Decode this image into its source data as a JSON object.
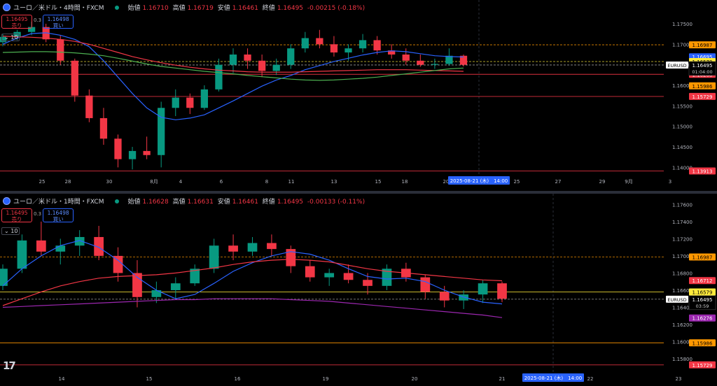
{
  "top": {
    "symbol": "ユーロ／米ドル・4時間・FXCM",
    "ohlc": {
      "open_label": "始値",
      "open": "1.16710",
      "high_label": "高値",
      "high": "1.16719",
      "low_label": "安値",
      "low": "1.16461",
      "close_label": "終値",
      "close": "1.16495",
      "change": "-0.00215 (-0.18%)"
    },
    "sell_price": "1.16495",
    "sell_label": "売り",
    "spread": "0.3",
    "buy_price": "1.16498",
    "buy_label": "買い",
    "collapse_label": "10",
    "symbol_tag": "EURUSD",
    "current_price": "1.16495",
    "countdown": "01:04:00",
    "crosshair_label": "2025-08-21 (木)　14:00"
  },
  "bottom": {
    "symbol": "ユーロ／米ドル・1時間・FXCM",
    "ohlc": {
      "open_label": "始値",
      "open": "1.16628",
      "high_label": "高値",
      "high": "1.16631",
      "low_label": "安値",
      "low": "1.16461",
      "close_label": "終値",
      "close": "1.16495",
      "change": "-0.00133 (-0.11%)"
    },
    "sell_price": "1.16495",
    "sell_label": "売り",
    "spread": "0.3",
    "buy_price": "1.16498",
    "buy_label": "買い",
    "collapse_label": "10",
    "symbol_tag": "EURUSD",
    "current_price": "1.16495",
    "countdown": "03:59",
    "crosshair_label": "2025-08-21 (木)　14:00",
    "brand": "17"
  },
  "colors": {
    "up": "#089981",
    "down": "#f23645",
    "ma_fast": "#2962ff",
    "ma_slow": "#f23645",
    "ma_green": "#4caf50",
    "ma_purple": "#9c27b0",
    "level_orange": "#ff9800",
    "level_yellow": "#ffeb3b"
  },
  "chart_data": [
    {
      "type": "candlestick",
      "title": "ユーロ／米ドル・4時間・FXCM",
      "x_ticks": [
        "25",
        "28",
        "30",
        "8月",
        "4",
        "6",
        "8",
        "11",
        "13",
        "15",
        "18",
        "20",
        "25",
        "27",
        "29",
        "9月",
        "3"
      ],
      "y_ticks": [
        "1.17500",
        "1.17000",
        "1.16500",
        "1.16000",
        "1.15500",
        "1.15000",
        "1.14500",
        "1.14000"
      ],
      "ylim": [
        1.1387,
        1.1784
      ],
      "price_labels": [
        {
          "value": 1.16987,
          "text": "1.16987",
          "color": "#ff9800"
        },
        {
          "value": 1.16695,
          "text": "1.16695",
          "color": "#2962ff"
        },
        {
          "value": 1.16579,
          "text": "1.16579",
          "color": "#ffeb3b"
        },
        {
          "value": 1.16403,
          "text": "1.16403",
          "color": "#4caf50"
        },
        {
          "value": 1.16268,
          "text": "1.16268",
          "color": "#f23645"
        },
        {
          "value": 1.15986,
          "text": "1.15986",
          "color": "#ff9800"
        },
        {
          "value": 1.15729,
          "text": "1.15729",
          "color": "#f23645"
        },
        {
          "value": 1.13913,
          "text": "1.13913",
          "color": "#f23645"
        }
      ],
      "hlines": [
        {
          "value": 1.16987,
          "color": "#ff9800",
          "dash": true
        },
        {
          "value": 1.16579,
          "color": "#ffeb3b",
          "dash": true
        },
        {
          "value": 1.16495,
          "color": "#aaaaaa",
          "dash": true
        },
        {
          "value": 1.16268,
          "color": "#f23645",
          "dash": false
        },
        {
          "value": 1.15729,
          "color": "#f23645",
          "dash": false
        },
        {
          "value": 1.13913,
          "color": "#f23645",
          "dash": false
        }
      ],
      "series": [
        {
          "name": "",
          "color": "#2962ff",
          "values": [
            1.17,
            1.1715,
            1.1726,
            1.1728,
            1.1722,
            1.1712,
            1.1694,
            1.166,
            1.162,
            1.158,
            1.1545,
            1.1522,
            1.1516,
            1.152,
            1.1528,
            1.1545,
            1.1562,
            1.158,
            1.1598,
            1.1613,
            1.1624,
            1.1638,
            1.1648,
            1.1658,
            1.1666,
            1.1674,
            1.168,
            1.1684,
            1.1682,
            1.1677,
            1.1672,
            1.167,
            1.1669
          ]
        },
        {
          "name": "",
          "color": "#f23645",
          "values": [
            1.172,
            1.1718,
            1.1717,
            1.1715,
            1.1712,
            1.1707,
            1.17,
            1.169,
            1.168,
            1.167,
            1.1662,
            1.1655,
            1.1649,
            1.1644,
            1.164,
            1.1637,
            1.1635,
            1.1633,
            1.1632,
            1.1632,
            1.1632,
            1.1633,
            1.1634,
            1.1635,
            1.1636,
            1.1637,
            1.1638,
            1.1638,
            1.1638,
            1.1637,
            1.1636,
            1.1635,
            1.1634
          ]
        },
        {
          "name": "",
          "color": "#4caf50",
          "values": [
            1.168,
            1.1681,
            1.1682,
            1.1682,
            1.1681,
            1.1679,
            1.1676,
            1.1672,
            1.1666,
            1.1659,
            1.1652,
            1.1646,
            1.1642,
            1.1638,
            1.1634,
            1.1631,
            1.1628,
            1.1624,
            1.1621,
            1.1618,
            1.1615,
            1.1613,
            1.1612,
            1.1613,
            1.1615,
            1.1617,
            1.162,
            1.1624,
            1.1628,
            1.1632,
            1.1636,
            1.164,
            1.1642
          ]
        }
      ],
      "candles_ohlc": [
        [
          1.1705,
          1.1725,
          1.1695,
          1.1718
        ],
        [
          1.1718,
          1.1735,
          1.171,
          1.173
        ],
        [
          1.173,
          1.1755,
          1.1722,
          1.1742
        ],
        [
          1.1742,
          1.175,
          1.1705,
          1.1712
        ],
        [
          1.1712,
          1.1722,
          1.165,
          1.166
        ],
        [
          1.166,
          1.1665,
          1.156,
          1.1575
        ],
        [
          1.1575,
          1.159,
          1.151,
          1.152
        ],
        [
          1.152,
          1.1545,
          1.1455,
          1.147
        ],
        [
          1.147,
          1.148,
          1.14,
          1.142
        ],
        [
          1.142,
          1.145,
          1.1395,
          1.144
        ],
        [
          1.144,
          1.1475,
          1.142,
          1.143
        ],
        [
          1.143,
          1.156,
          1.14,
          1.1545
        ],
        [
          1.1545,
          1.159,
          1.1525,
          1.157
        ],
        [
          1.157,
          1.158,
          1.153,
          1.1545
        ],
        [
          1.1545,
          1.16,
          1.154,
          1.159
        ],
        [
          1.159,
          1.1665,
          1.1585,
          1.165
        ],
        [
          1.165,
          1.169,
          1.163,
          1.1675
        ],
        [
          1.1675,
          1.169,
          1.164,
          1.166
        ],
        [
          1.166,
          1.1675,
          1.162,
          1.1635
        ],
        [
          1.1635,
          1.1665,
          1.1625,
          1.165
        ],
        [
          1.165,
          1.17,
          1.164,
          1.169
        ],
        [
          1.169,
          1.173,
          1.168,
          1.1715
        ],
        [
          1.1715,
          1.1735,
          1.169,
          1.17
        ],
        [
          1.17,
          1.172,
          1.167,
          1.168
        ],
        [
          1.168,
          1.17,
          1.166,
          1.169
        ],
        [
          1.169,
          1.1725,
          1.168,
          1.171
        ],
        [
          1.171,
          1.172,
          1.1675,
          1.1685
        ],
        [
          1.1685,
          1.17,
          1.1665,
          1.1675
        ],
        [
          1.1675,
          1.169,
          1.165,
          1.166
        ],
        [
          1.166,
          1.1675,
          1.1645,
          1.165
        ],
        [
          1.165,
          1.1665,
          1.164,
          1.1652
        ],
        [
          1.1652,
          1.169,
          1.1648,
          1.1672
        ],
        [
          1.1672,
          1.1675,
          1.1646,
          1.165
        ]
      ]
    },
    {
      "type": "candlestick",
      "title": "ユーロ／米ドル・1時間・FXCM",
      "x_ticks": [
        "14",
        "15",
        "16",
        "19",
        "20",
        "21",
        "22",
        "23"
      ],
      "y_ticks": [
        "1.17600",
        "1.17400",
        "1.17200",
        "1.17000",
        "1.16800",
        "1.16600",
        "1.16400",
        "1.16200",
        "1.16000",
        "1.15800"
      ],
      "ylim": [
        1.1567,
        1.1766
      ],
      "price_labels": [
        {
          "value": 1.16987,
          "text": "1.16987",
          "color": "#ff9800"
        },
        {
          "value": 1.16712,
          "text": "1.16712",
          "color": "#f23645"
        },
        {
          "value": 1.16579,
          "text": "1.16579",
          "color": "#ffeb3b"
        },
        {
          "value": 1.16486,
          "text": "1.16486",
          "color": "#4caf50"
        },
        {
          "value": 1.16436,
          "text": "1.16436",
          "color": "#2962ff"
        },
        {
          "value": 1.16276,
          "text": "1.16276",
          "color": "#9c27b0"
        },
        {
          "value": 1.15986,
          "text": "1.15986",
          "color": "#ff9800"
        },
        {
          "value": 1.15729,
          "text": "1.15729",
          "color": "#f23645"
        }
      ],
      "hlines": [
        {
          "value": 1.16987,
          "color": "#ff9800",
          "dash": true
        },
        {
          "value": 1.16579,
          "color": "#ffeb3b",
          "dash": false
        },
        {
          "value": 1.16495,
          "color": "#aaaaaa",
          "dash": true
        },
        {
          "value": 1.15986,
          "color": "#ff9800",
          "dash": false
        },
        {
          "value": 1.15729,
          "color": "#f23645",
          "dash": false
        }
      ],
      "series": [
        {
          "name": "",
          "color": "#2962ff",
          "values": [
            1.1665,
            1.1685,
            1.17,
            1.1712,
            1.1718,
            1.171,
            1.1695,
            1.1675,
            1.166,
            1.165,
            1.1655,
            1.1668,
            1.1682,
            1.1692,
            1.17,
            1.1705,
            1.1702,
            1.1695,
            1.1685,
            1.1676,
            1.1673,
            1.1674,
            1.167,
            1.166,
            1.1652,
            1.1646,
            1.1644
          ]
        },
        {
          "name": "",
          "color": "#f23645",
          "values": [
            1.1642,
            1.165,
            1.1658,
            1.1665,
            1.167,
            1.1674,
            1.1676,
            1.1677,
            1.1678,
            1.168,
            1.1683,
            1.1686,
            1.169,
            1.1693,
            1.1695,
            1.1696,
            1.1695,
            1.1693,
            1.1689,
            1.1685,
            1.1682,
            1.168,
            1.1678,
            1.1676,
            1.1674,
            1.1672,
            1.1671
          ]
        },
        {
          "name": "",
          "color": "#9c27b0",
          "values": [
            1.164,
            1.1641,
            1.1642,
            1.1643,
            1.1644,
            1.1645,
            1.1646,
            1.1647,
            1.1648,
            1.1649,
            1.1649,
            1.165,
            1.165,
            1.165,
            1.165,
            1.1649,
            1.1648,
            1.1647,
            1.1645,
            1.1643,
            1.1641,
            1.1639,
            1.1637,
            1.1635,
            1.1633,
            1.1631,
            1.1628
          ]
        }
      ],
      "candles_ohlc": [
        [
          1.1665,
          1.169,
          1.166,
          1.1685
        ],
        [
          1.1685,
          1.1725,
          1.168,
          1.1718
        ],
        [
          1.1718,
          1.174,
          1.17,
          1.1705
        ],
        [
          1.1705,
          1.172,
          1.169,
          1.1712
        ],
        [
          1.1712,
          1.173,
          1.17,
          1.1722
        ],
        [
          1.1722,
          1.1735,
          1.1695,
          1.17
        ],
        [
          1.17,
          1.171,
          1.167,
          1.168
        ],
        [
          1.168,
          1.1695,
          1.164,
          1.1652
        ],
        [
          1.1652,
          1.167,
          1.1645,
          1.166
        ],
        [
          1.166,
          1.1675,
          1.165,
          1.1668
        ],
        [
          1.1668,
          1.169,
          1.1665,
          1.1685
        ],
        [
          1.1685,
          1.172,
          1.168,
          1.1712
        ],
        [
          1.1712,
          1.1725,
          1.1695,
          1.1705
        ],
        [
          1.1705,
          1.1722,
          1.17,
          1.1715
        ],
        [
          1.1715,
          1.1725,
          1.17,
          1.1708
        ],
        [
          1.1708,
          1.1712,
          1.168,
          1.1688
        ],
        [
          1.1688,
          1.1695,
          1.167,
          1.1675
        ],
        [
          1.1675,
          1.1685,
          1.1665,
          1.168
        ],
        [
          1.168,
          1.169,
          1.1668,
          1.1672
        ],
        [
          1.1672,
          1.168,
          1.1655,
          1.1665
        ],
        [
          1.1665,
          1.169,
          1.166,
          1.1685
        ],
        [
          1.1685,
          1.1692,
          1.167,
          1.1675
        ],
        [
          1.1675,
          1.1678,
          1.165,
          1.1658
        ],
        [
          1.1658,
          1.1665,
          1.164,
          1.1648
        ],
        [
          1.1648,
          1.166,
          1.1638,
          1.1655
        ],
        [
          1.1655,
          1.1672,
          1.1645,
          1.1668
        ],
        [
          1.1668,
          1.167,
          1.1646,
          1.165
        ]
      ]
    }
  ]
}
